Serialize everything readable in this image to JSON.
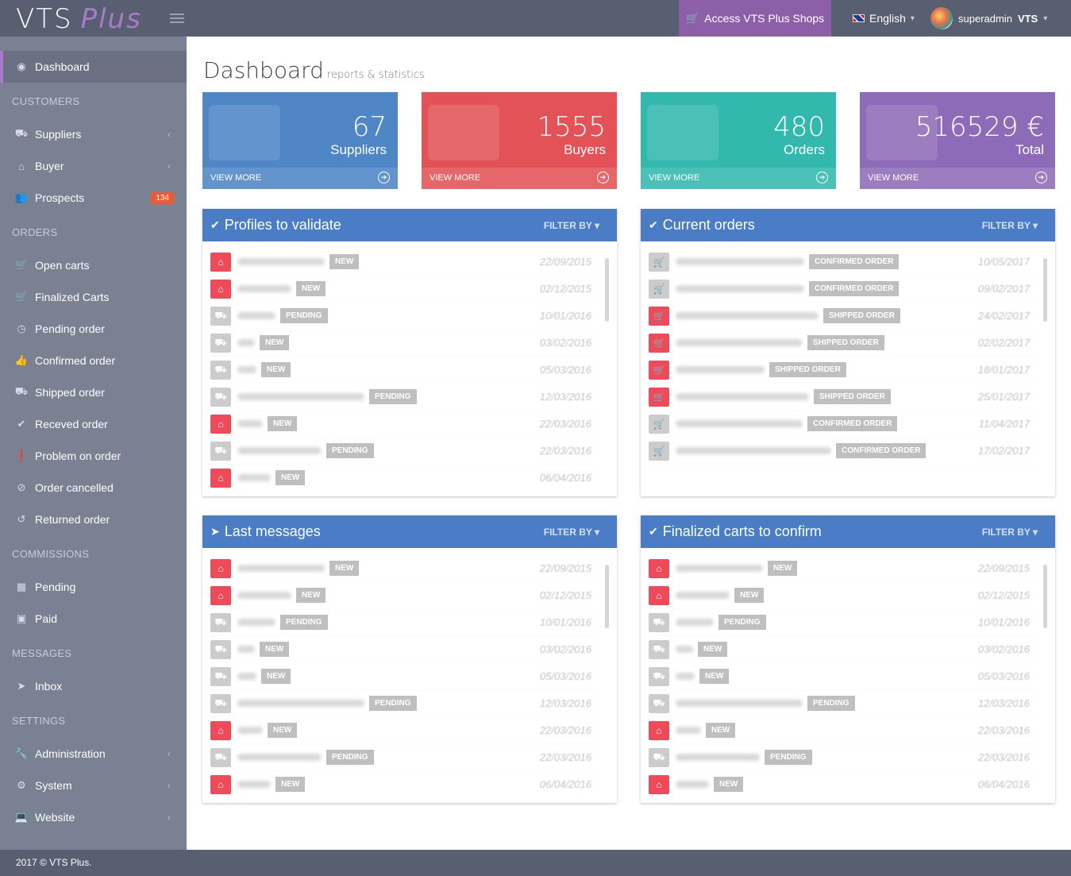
{
  "app": {
    "logo_main": "VTS",
    "logo_plus": "Plus"
  },
  "topbar": {
    "shop_label": "Access VTS Plus Shops",
    "language": "English",
    "user_name": "superadmin",
    "user_org": "VTS"
  },
  "sidebar": {
    "dashboard": "Dashboard",
    "sections": {
      "customers": "CUSTOMERS",
      "orders": "ORDERS",
      "commissions": "COMMISSIONS",
      "messages": "MESSAGES",
      "settings": "SETTINGS"
    },
    "items": {
      "suppliers": "Suppliers",
      "buyer": "Buyer",
      "prospects": "Prospects",
      "prospects_badge": "134",
      "open_carts": "Open carts",
      "finalized_carts": "Finalized Carts",
      "pending_order": "Pending order",
      "confirmed_order": "Confirmed order",
      "shipped_order": "Shipped order",
      "receved_order": "Receved order",
      "problem_order": "Problem on order",
      "order_cancelled": "Order cancelled",
      "returned_order": "Returned order",
      "pending": "Pending",
      "paid": "Paid",
      "inbox": "Inbox",
      "administration": "Administration",
      "system": "System",
      "website": "Website"
    }
  },
  "page": {
    "title": "Dashboard",
    "subtitle": "reports & statistics"
  },
  "stats": [
    {
      "value": "67",
      "label": "Suppliers",
      "more": "VIEW MORE",
      "color": "#4f86c6"
    },
    {
      "value": "1555",
      "label": "Buyers",
      "more": "VIEW MORE",
      "color": "#e35256"
    },
    {
      "value": "480",
      "label": "Orders",
      "more": "VIEW MORE",
      "color": "#33b8ad"
    },
    {
      "value": "516529 €",
      "label": "Total",
      "more": "VIEW MORE",
      "color": "#8e6bb8"
    }
  ],
  "panels": {
    "profiles": {
      "title": "Profiles to validate",
      "filter": "FILTER BY"
    },
    "orders": {
      "title": "Current orders",
      "filter": "FILTER BY"
    },
    "messages": {
      "title": "Last messages",
      "filter": "FILTER BY"
    },
    "carts": {
      "title": "Finalized carts to confirm",
      "filter": "FILTER BY"
    }
  },
  "profile_rows": [
    {
      "icon": "home",
      "w": 110,
      "tag": "NEW",
      "date": "22/09/2015"
    },
    {
      "icon": "home",
      "w": 68,
      "tag": "NEW",
      "date": "02/12/2015"
    },
    {
      "icon": "truck",
      "w": 48,
      "tag": "PENDING",
      "date": "10/01/2016"
    },
    {
      "icon": "truck",
      "w": 22,
      "tag": "NEW",
      "date": "03/02/2016"
    },
    {
      "icon": "truck",
      "w": 24,
      "tag": "NEW",
      "date": "05/03/2016"
    },
    {
      "icon": "truck",
      "w": 160,
      "tag": "PENDING",
      "date": "12/03/2016"
    },
    {
      "icon": "home",
      "w": 32,
      "tag": "NEW",
      "date": "22/03/2016"
    },
    {
      "icon": "truck",
      "w": 106,
      "tag": "PENDING",
      "date": "22/03/2016"
    },
    {
      "icon": "home",
      "w": 42,
      "tag": "NEW",
      "date": "06/04/2016"
    }
  ],
  "order_rows": [
    {
      "icon": "cart",
      "red": false,
      "w": 162,
      "tag": "CONFIRMED ORDER",
      "date": "10/05/2017"
    },
    {
      "icon": "cart",
      "red": false,
      "w": 162,
      "tag": "CONFIRMED ORDER",
      "date": "09/02/2017"
    },
    {
      "icon": "cart",
      "red": true,
      "w": 180,
      "tag": "SHIPPED ORDER",
      "date": "24/02/2017"
    },
    {
      "icon": "cart",
      "red": true,
      "w": 160,
      "tag": "SHIPPED ORDER",
      "date": "02/02/2017"
    },
    {
      "icon": "cart",
      "red": true,
      "w": 112,
      "tag": "SHIPPED ORDER",
      "date": "18/01/2017"
    },
    {
      "icon": "cart",
      "red": true,
      "w": 168,
      "tag": "SHIPPED ORDER",
      "date": "25/01/2017"
    },
    {
      "icon": "cart",
      "red": false,
      "w": 160,
      "tag": "CONFIRMED ORDER",
      "date": "11/04/2017"
    },
    {
      "icon": "cart",
      "red": false,
      "w": 196,
      "tag": "CONFIRMED ORDER",
      "date": "17/02/2017"
    }
  ]
}
